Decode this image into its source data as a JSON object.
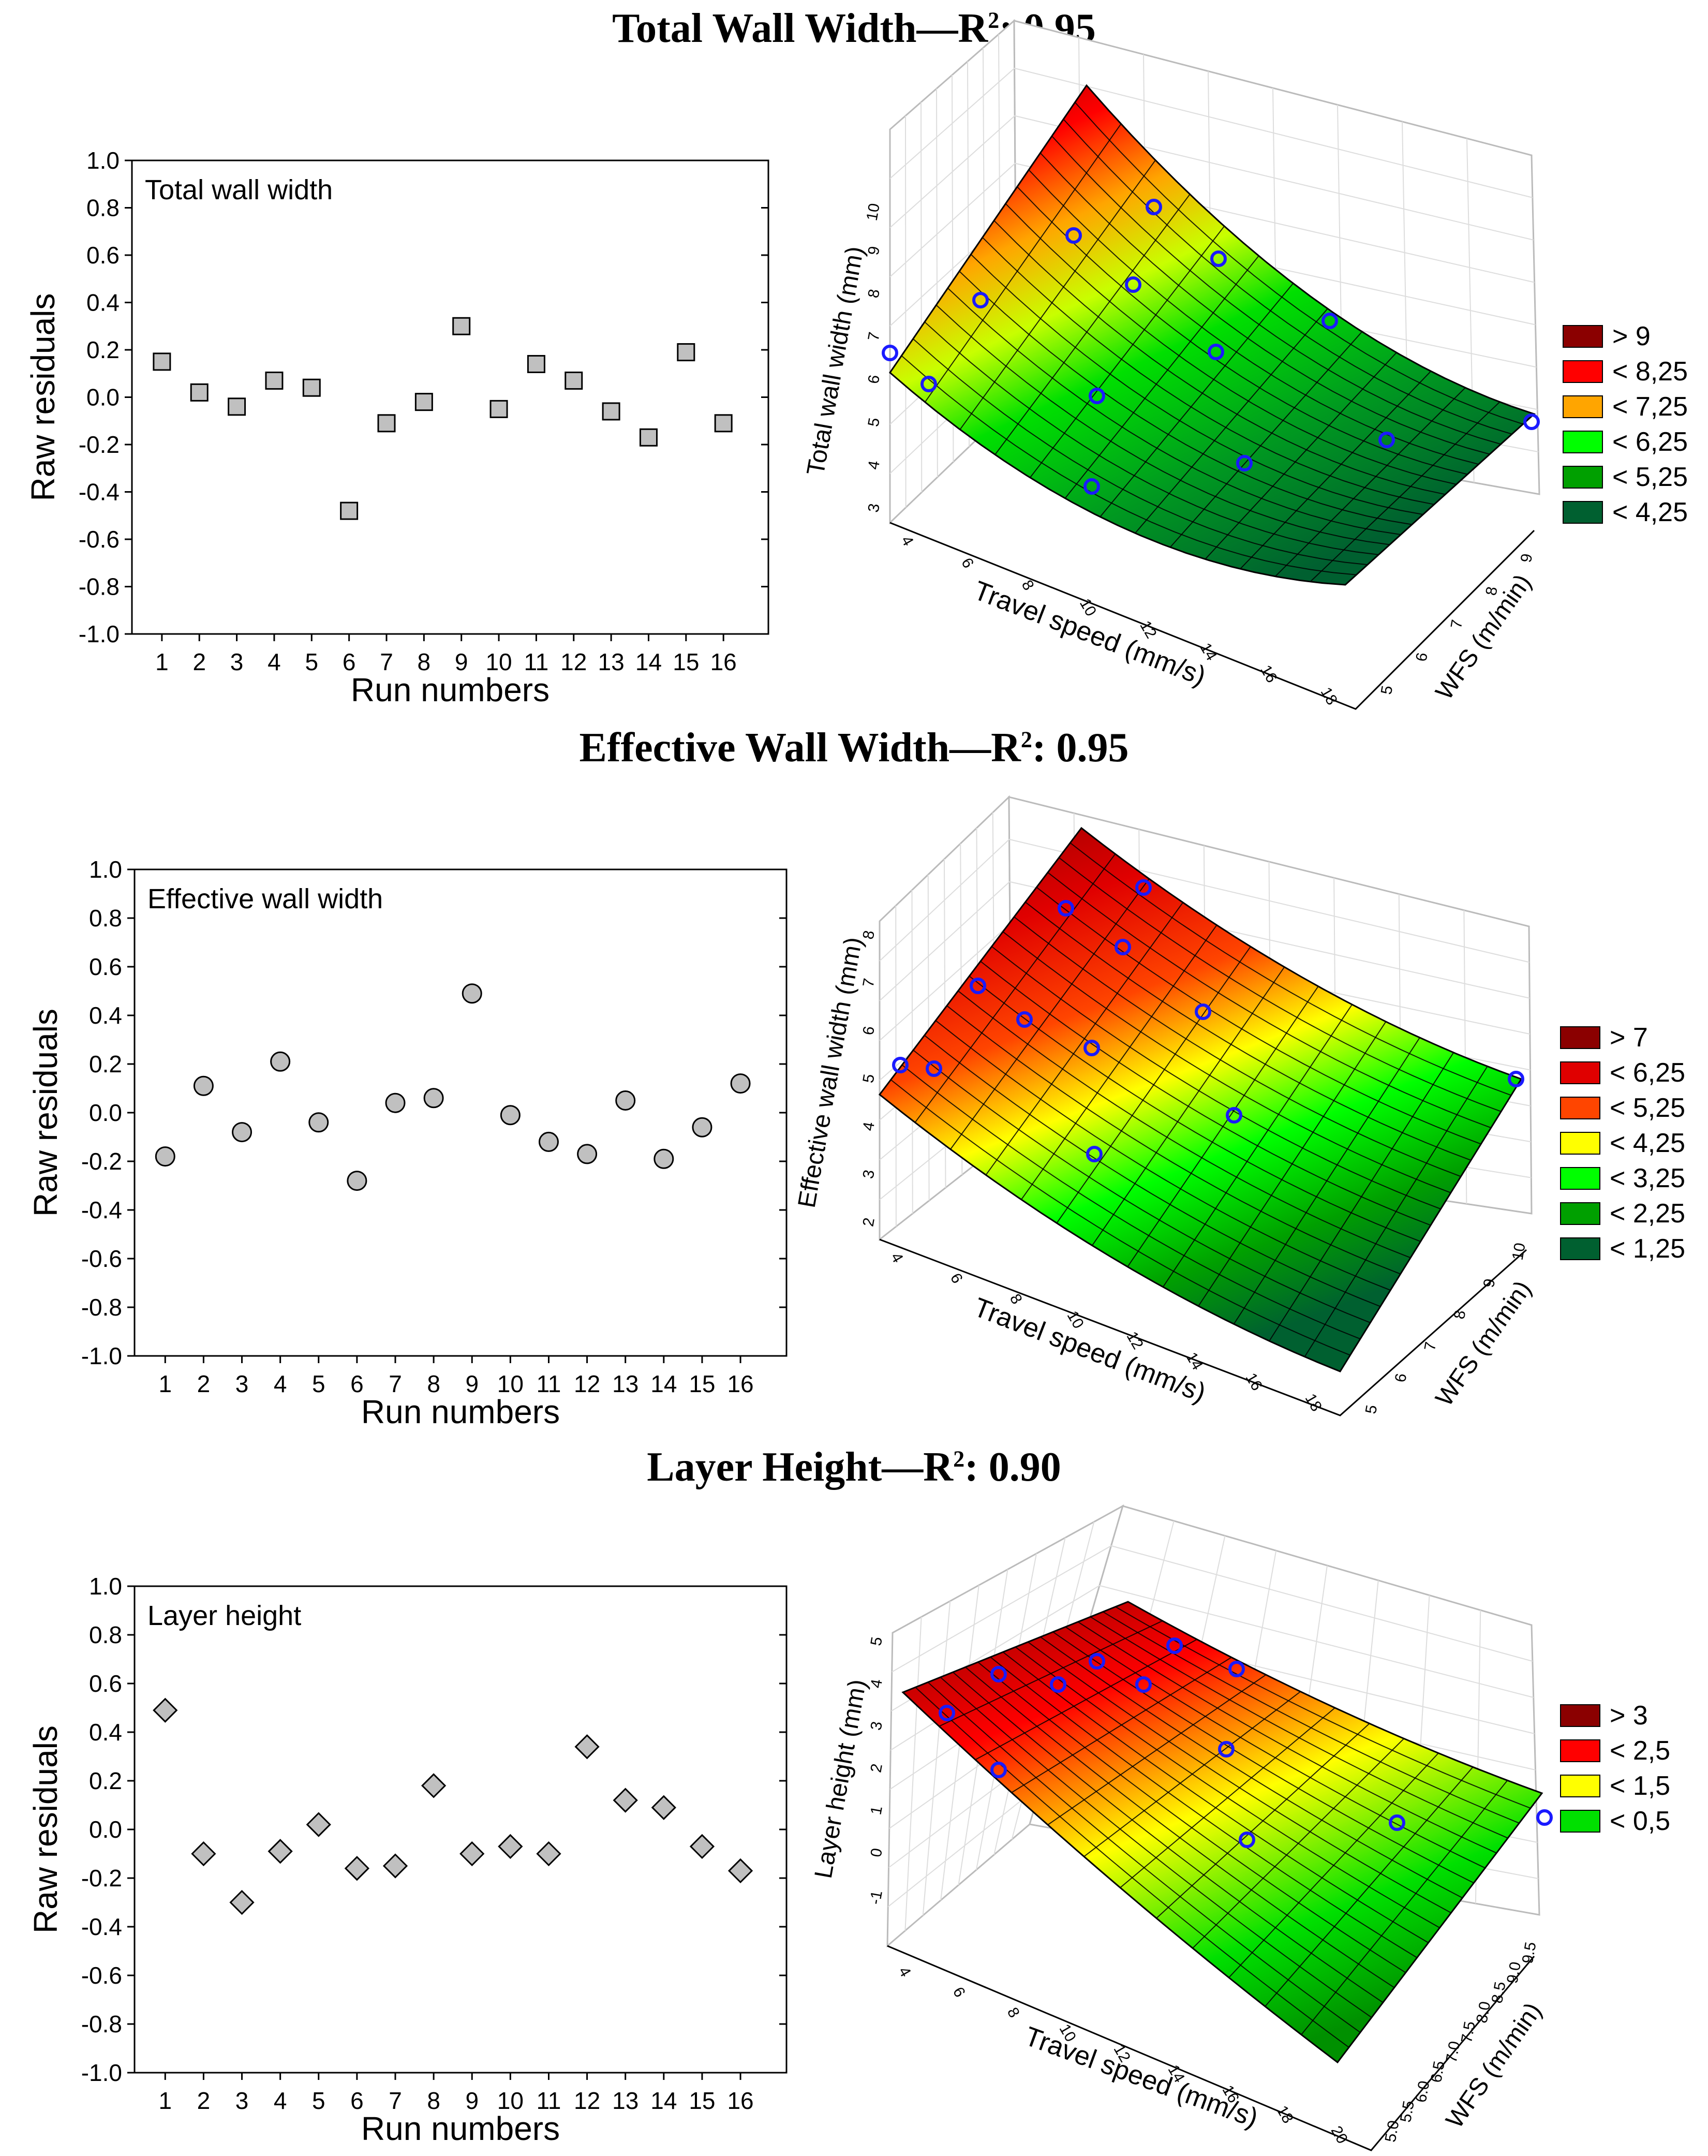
{
  "panels": [
    {
      "heading": {
        "main": "Total Wall Width—R",
        "sup": "2",
        "tail": ": 0.95"
      },
      "residual_chart": {
        "type": "scatter",
        "title": "Total wall width",
        "xlabel": "Run numbers",
        "ylabel": "Raw residuals",
        "marker": "square",
        "ylim": [
          -1.0,
          1.0
        ],
        "yticks": [
          "1.0",
          "0.8",
          "0.6",
          "0.4",
          "0.2",
          "0.0",
          "-0.2",
          "-0.4",
          "-0.6",
          "-0.8",
          "-1.0"
        ],
        "x": [
          1,
          2,
          3,
          4,
          5,
          6,
          7,
          8,
          9,
          10,
          11,
          12,
          13,
          14,
          15,
          16
        ],
        "y": [
          0.15,
          0.02,
          -0.04,
          0.07,
          0.04,
          -0.48,
          -0.11,
          -0.02,
          0.3,
          -0.05,
          0.14,
          0.07,
          -0.06,
          -0.17,
          0.19,
          -0.11
        ]
      },
      "surface_chart": {
        "type": "surface3d",
        "zlabel": "Total wall width (mm)",
        "xlabel": "Travel speed (mm/s)",
        "ylabel": "WFS (m/min)",
        "z_ticks": [
          "3",
          "4",
          "5",
          "6",
          "7",
          "8",
          "9",
          "10"
        ],
        "x_ticks": [
          "4",
          "6",
          "8",
          "10",
          "12",
          "14",
          "16",
          "18"
        ],
        "y_ticks": [
          "5",
          "6",
          "7",
          "8",
          "9"
        ],
        "legend": [
          {
            "label": "> 9",
            "color": "#8b0000"
          },
          {
            "label": "< 8,25",
            "color": "#ff0000"
          },
          {
            "label": "< 7,25",
            "color": "#ffa500"
          },
          {
            "label": "< 6,25",
            "color": "#00ff00"
          },
          {
            "label": "< 5,25",
            "color": "#00a000"
          },
          {
            "label": "< 4,25",
            "color": "#006030"
          }
        ]
      }
    },
    {
      "heading": {
        "main": "Effective Wall Width—R",
        "sup": "2",
        "tail": ": 0.95"
      },
      "residual_chart": {
        "type": "scatter",
        "title": "Effective wall width",
        "xlabel": "Run numbers",
        "ylabel": "Raw residuals",
        "marker": "circle",
        "ylim": [
          -1.0,
          1.0
        ],
        "yticks": [
          "1.0",
          "0.8",
          "0.6",
          "0.4",
          "0.2",
          "0.0",
          "-0.2",
          "-0.4",
          "-0.6",
          "-0.8",
          "-1.0"
        ],
        "x": [
          1,
          2,
          3,
          4,
          5,
          6,
          7,
          8,
          9,
          10,
          11,
          12,
          13,
          14,
          15,
          16
        ],
        "y": [
          -0.18,
          0.11,
          -0.08,
          0.21,
          -0.04,
          -0.28,
          0.04,
          0.06,
          0.49,
          -0.01,
          -0.12,
          -0.17,
          0.05,
          -0.19,
          -0.06,
          0.12
        ]
      },
      "surface_chart": {
        "type": "surface3d",
        "zlabel": "Effective wall width (mm)",
        "xlabel": "Travel speed (mm/s)",
        "ylabel": "WFS (m/min)",
        "z_ticks": [
          "2",
          "3",
          "4",
          "5",
          "6",
          "7",
          "8"
        ],
        "x_ticks": [
          "4",
          "6",
          "8",
          "10",
          "12",
          "14",
          "16",
          "18"
        ],
        "y_ticks": [
          "5",
          "6",
          "7",
          "8",
          "9",
          "10"
        ],
        "legend": [
          {
            "label": "> 7",
            "color": "#8b0000"
          },
          {
            "label": "< 6,25",
            "color": "#e00000"
          },
          {
            "label": "< 5,25",
            "color": "#ff4500"
          },
          {
            "label": "< 4,25",
            "color": "#ffff00"
          },
          {
            "label": "< 3,25",
            "color": "#00ff00"
          },
          {
            "label": "< 2,25",
            "color": "#00a000"
          },
          {
            "label": "< 1,25",
            "color": "#006030"
          }
        ]
      }
    },
    {
      "heading": {
        "main": "Layer Height—R",
        "sup": "2",
        "tail": ": 0.90"
      },
      "residual_chart": {
        "type": "scatter",
        "title": "Layer height",
        "xlabel": "Run numbers",
        "ylabel": "Raw residuals",
        "marker": "diamond",
        "ylim": [
          -1.0,
          1.0
        ],
        "yticks": [
          "1.0",
          "0.8",
          "0.6",
          "0.4",
          "0.2",
          "0.0",
          "-0.2",
          "-0.4",
          "-0.6",
          "-0.8",
          "-1.0"
        ],
        "x": [
          1,
          2,
          3,
          4,
          5,
          6,
          7,
          8,
          9,
          10,
          11,
          12,
          13,
          14,
          15,
          16
        ],
        "y": [
          0.49,
          -0.1,
          -0.3,
          -0.09,
          0.02,
          -0.16,
          -0.15,
          0.18,
          -0.1,
          -0.07,
          -0.1,
          0.34,
          0.12,
          0.09,
          -0.07,
          -0.17
        ]
      },
      "surface_chart": {
        "type": "surface3d",
        "zlabel": "Layer height (mm)",
        "xlabel": "Travel speed (mm/s)",
        "ylabel": "WFS (m/min)",
        "z_ticks": [
          "-1",
          "0",
          "1",
          "2",
          "3",
          "4",
          "5"
        ],
        "x_ticks": [
          "4",
          "6",
          "8",
          "10",
          "12",
          "14",
          "16",
          "18",
          "20"
        ],
        "y_ticks": [
          "5.0",
          "5.5",
          "6.0",
          "6.5",
          "7.0",
          "7.5",
          "8.0",
          "8.5",
          "9.0",
          "9.5"
        ],
        "legend": [
          {
            "label": "> 3",
            "color": "#8b0000"
          },
          {
            "label": "< 2,5",
            "color": "#ff0000"
          },
          {
            "label": "< 1,5",
            "color": "#ffff00"
          },
          {
            "label": "< 0,5",
            "color": "#00e000"
          }
        ]
      }
    }
  ]
}
